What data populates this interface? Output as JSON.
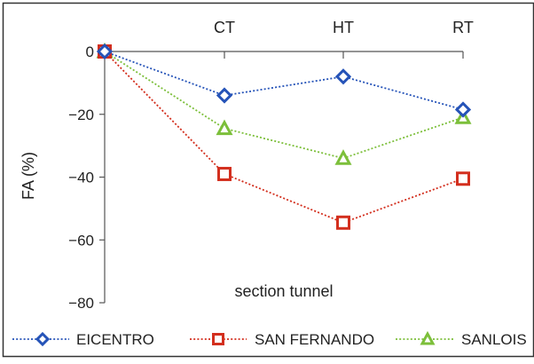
{
  "chart_data": {
    "type": "line",
    "title": "",
    "xlabel": "section tunnel",
    "ylabel": "FA (%)",
    "ylim": [
      -80,
      0
    ],
    "yticks": [
      0,
      -20,
      -40,
      -60,
      -80
    ],
    "grid": false,
    "legend_position": "bottom",
    "categories": [
      "",
      "CT",
      "HT",
      "RT"
    ],
    "series": [
      {
        "name": "EICENTRO",
        "marker": "diamond",
        "color": "#2553b8",
        "values": [
          0,
          -14,
          -8,
          -18.5
        ]
      },
      {
        "name": "SAN FERNANDO",
        "marker": "square",
        "color": "#d32f1e",
        "values": [
          0,
          -39,
          -54.5,
          -40.5
        ]
      },
      {
        "name": "SANLOIS",
        "marker": "triangle",
        "color": "#7cbf3a",
        "values": [
          0,
          -24.5,
          -34,
          -21
        ]
      }
    ]
  }
}
